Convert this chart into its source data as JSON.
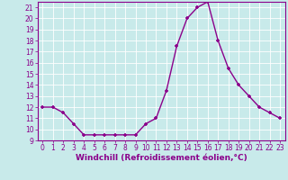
{
  "x": [
    0,
    1,
    2,
    3,
    4,
    5,
    6,
    7,
    8,
    9,
    10,
    11,
    12,
    13,
    14,
    15,
    16,
    17,
    18,
    19,
    20,
    21,
    22,
    23
  ],
  "y": [
    12,
    12,
    11.5,
    10.5,
    9.5,
    9.5,
    9.5,
    9.5,
    9.5,
    9.5,
    10.5,
    11,
    13.5,
    17.5,
    20,
    21,
    21.5,
    18,
    15.5,
    14,
    13,
    12,
    11.5,
    11
  ],
  "line_color": "#8b008b",
  "marker": "+",
  "marker_size": 3,
  "bg_color": "#c8eaea",
  "grid_color": "#b0d8d8",
  "xlabel": "Windchill (Refroidissement éolien,°C)",
  "xlim": [
    -0.5,
    23.5
  ],
  "ylim": [
    9,
    21.5
  ],
  "yticks": [
    9,
    10,
    11,
    12,
    13,
    14,
    15,
    16,
    17,
    18,
    19,
    20,
    21
  ],
  "xticks": [
    0,
    1,
    2,
    3,
    4,
    5,
    6,
    7,
    8,
    9,
    10,
    11,
    12,
    13,
    14,
    15,
    16,
    17,
    18,
    19,
    20,
    21,
    22,
    23
  ],
  "tick_fontsize": 5.5,
  "xlabel_fontsize": 6.5,
  "label_color": "#8b008b",
  "axis_color": "#8b008b",
  "grid_line_color": "#ffffff",
  "linewidth": 1.0,
  "markerwidth": 1.2
}
